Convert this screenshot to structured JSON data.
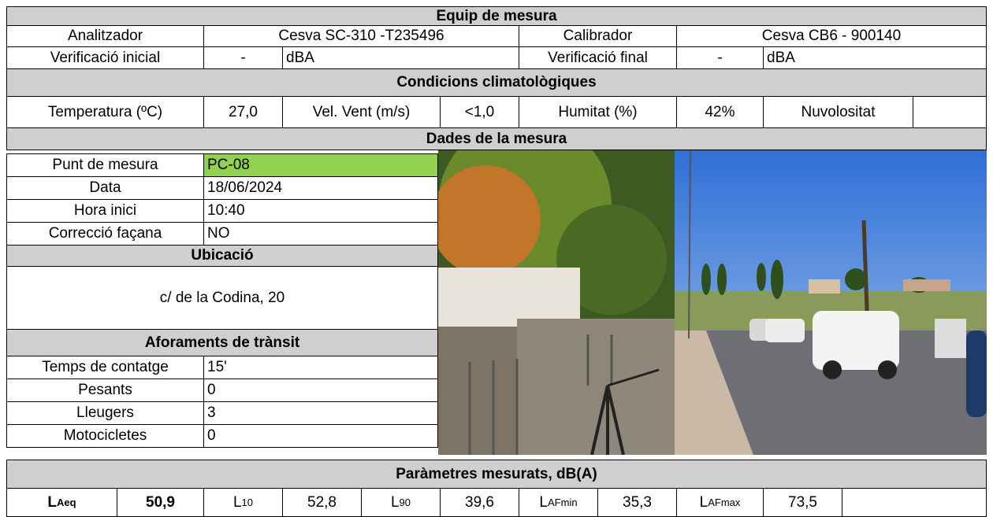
{
  "sections": {
    "equipment": "Equip de mesura",
    "climate": "Condicions climatològiques",
    "measurement": "Dades de la mesura",
    "location": "Ubicació",
    "traffic": "Aforaments de trànsit",
    "parameters": "Paràmetres mesurats, dB(A)"
  },
  "equipment": {
    "analyzer_label": "Analitzador",
    "analyzer": "Cesva SC-310 -T235496",
    "calibrator_label": "Calibrador",
    "calibrator": "Cesva CB6 - 900140",
    "initial_label": "Verificació inicial",
    "initial_value": "-",
    "initial_unit": "dBA",
    "final_label": "Verificació final",
    "final_value": "-",
    "final_unit": "dBA"
  },
  "climate": {
    "temperature_label": "Temperatura (ºC)",
    "temperature": "27,0",
    "wind_label": "Vel. Vent (m/s)",
    "wind": "<1,0",
    "humidity_label": "Humitat (%)",
    "humidity": "42%",
    "cloud_label": "Nuvolositat"
  },
  "measurement": [
    [
      "Punt de mesura",
      "PC-08"
    ],
    [
      "Data",
      "18/06/2024"
    ],
    [
      "Hora inici",
      "10:40"
    ],
    [
      "Correcció façana",
      "NO"
    ]
  ],
  "location": "c/ de la Codina, 20",
  "traffic": [
    [
      "Temps de contatge",
      "15'"
    ],
    [
      "Pesants",
      "0"
    ],
    [
      "Lleugers",
      "3"
    ],
    [
      "Motocicletes",
      "0"
    ]
  ],
  "parameters": [
    {
      "symbol": "L",
      "sub": "Aeq",
      "value": "50,9"
    },
    {
      "symbol": "L",
      "sub": "10",
      "value": "52,8"
    },
    {
      "symbol": "L",
      "sub": "90",
      "value": "39,6"
    },
    {
      "symbol": "L",
      "sub": "AFmin",
      "value": "35,3"
    },
    {
      "symbol": "L",
      "sub": "AFmax",
      "value": "73,5"
    }
  ]
}
